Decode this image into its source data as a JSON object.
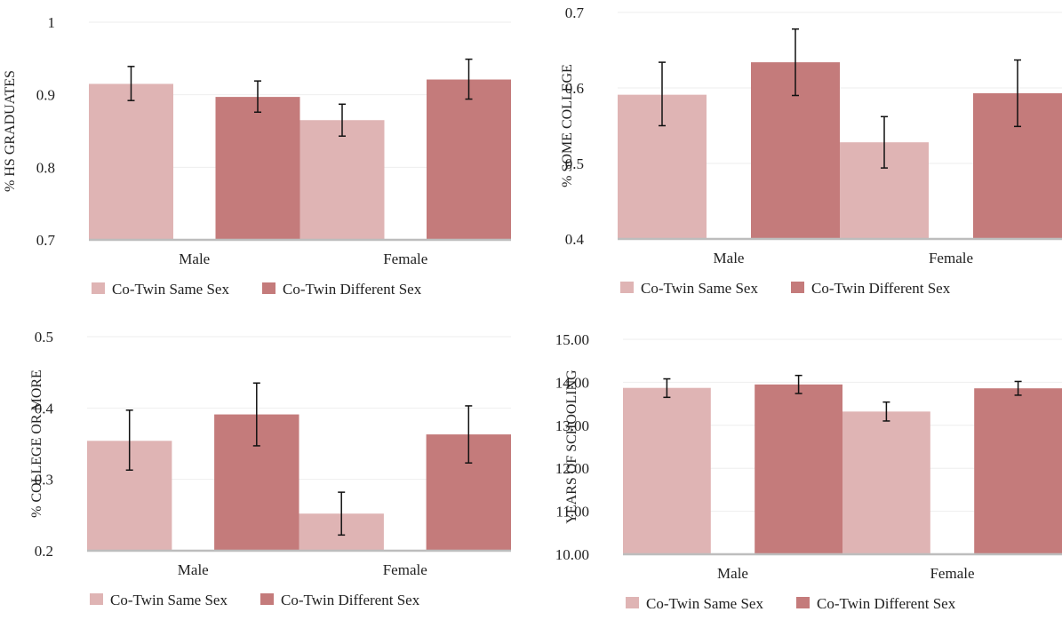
{
  "colors": {
    "same": "#dfb4b4",
    "different": "#c47b7b",
    "overlap": "#ba6565",
    "axis": "#bdbdbd",
    "grid": "#eeeeee",
    "text": "#222222"
  },
  "legend": {
    "same": "Co-Twin Same Sex",
    "different": "Co-Twin Different Sex"
  },
  "chart_data": [
    {
      "type": "bar",
      "ylabel": "% HS GRADUATES",
      "categories": [
        "Male",
        "Female"
      ],
      "ylim": [
        0.7,
        1.0
      ],
      "yticks": [
        "0.7",
        "0.8",
        "0.9",
        "1"
      ],
      "grid": true,
      "legend_position": "bottom",
      "series": [
        {
          "name": "Co-Twin Same Sex",
          "values": [
            0.915,
            0.865
          ],
          "err_low": [
            0.892,
            0.843
          ],
          "err_high": [
            0.939,
            0.887
          ]
        },
        {
          "name": "Co-Twin Different Sex",
          "values": [
            0.897,
            0.921
          ],
          "err_low": [
            0.876,
            0.894
          ],
          "err_high": [
            0.919,
            0.949
          ]
        }
      ]
    },
    {
      "type": "bar",
      "ylabel": "% SOME COLLEGE",
      "categories": [
        "Male",
        "Female"
      ],
      "ylim": [
        0.4,
        0.7
      ],
      "yticks": [
        "0.4",
        "0.5",
        "0.6",
        "0.7"
      ],
      "grid": true,
      "legend_position": "bottom",
      "series": [
        {
          "name": "Co-Twin Same Sex",
          "values": [
            0.591,
            0.528
          ],
          "err_low": [
            0.55,
            0.494
          ],
          "err_high": [
            0.634,
            0.562
          ]
        },
        {
          "name": "Co-Twin Different Sex",
          "values": [
            0.634,
            0.593
          ],
          "err_low": [
            0.59,
            0.549
          ],
          "err_high": [
            0.678,
            0.637
          ]
        }
      ]
    },
    {
      "type": "bar",
      "ylabel": "% COLLEGE OR MORE",
      "categories": [
        "Male",
        "Female"
      ],
      "ylim": [
        0.2,
        0.5
      ],
      "yticks": [
        "0.2",
        "0.3",
        "0.4",
        "0.5"
      ],
      "grid": true,
      "legend_position": "bottom",
      "series": [
        {
          "name": "Co-Twin Same Sex",
          "values": [
            0.354,
            0.252
          ],
          "err_low": [
            0.313,
            0.222
          ],
          "err_high": [
            0.397,
            0.282
          ]
        },
        {
          "name": "Co-Twin Different Sex",
          "values": [
            0.391,
            0.363
          ],
          "err_low": [
            0.347,
            0.323
          ],
          "err_high": [
            0.435,
            0.403
          ]
        }
      ]
    },
    {
      "type": "bar",
      "ylabel": "YEARS OF SCHOOLING",
      "categories": [
        "Male",
        "Female"
      ],
      "ylim": [
        10.0,
        15.0
      ],
      "yticks": [
        "10.00",
        "11.00",
        "12.00",
        "13.00",
        "14.00",
        "15.00"
      ],
      "grid": true,
      "legend_position": "bottom",
      "series": [
        {
          "name": "Co-Twin Same Sex",
          "values": [
            13.87,
            13.32
          ],
          "err_low": [
            13.65,
            13.1
          ],
          "err_high": [
            14.08,
            13.54
          ]
        },
        {
          "name": "Co-Twin Different Sex",
          "values": [
            13.95,
            13.86
          ],
          "err_low": [
            13.74,
            13.7
          ],
          "err_high": [
            14.16,
            14.02
          ]
        }
      ]
    }
  ]
}
